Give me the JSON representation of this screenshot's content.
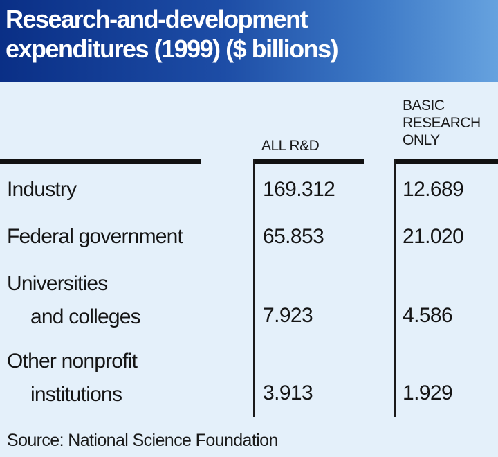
{
  "chart_data": {
    "type": "table",
    "title_line1": "Research-and-development",
    "title_line2": "expenditures (1999) ($ billions)",
    "columns": [
      "ALL R&D",
      "BASIC RESEARCH ONLY"
    ],
    "column_header_lines": [
      [
        "ALL R&D"
      ],
      [
        "BASIC",
        "RESEARCH",
        "ONLY"
      ]
    ],
    "rows": [
      {
        "label_lines": [
          "Industry"
        ],
        "all_rd": "169.312",
        "basic": "12.689"
      },
      {
        "label_lines": [
          "Federal government"
        ],
        "all_rd": "65.853",
        "basic": "21.020"
      },
      {
        "label_lines": [
          "Universities",
          "and colleges"
        ],
        "all_rd": "7.923",
        "basic": "4.586"
      },
      {
        "label_lines": [
          "Other nonprofit",
          "institutions"
        ],
        "all_rd": "3.913",
        "basic": "1.929"
      }
    ],
    "source": "Source: National Science Foundation"
  },
  "colors": {
    "header_gradient_start": "#0a2f86",
    "header_gradient_end": "#66a2df",
    "background": "#e4f0fa",
    "text": "#151515"
  }
}
